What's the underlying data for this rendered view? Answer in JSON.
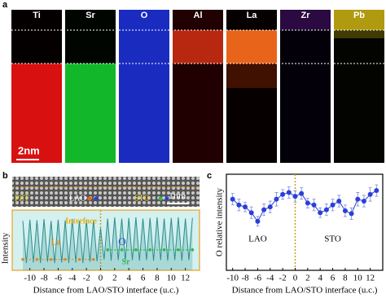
{
  "panel_labels": [
    "a",
    "b",
    "c"
  ],
  "element_maps": [
    "Ti",
    "Sr",
    "O",
    "Al",
    "La",
    "Zr",
    "Pb"
  ],
  "map_scale": "2nm",
  "stem_labels": {
    "pzt": "PZT",
    "lao": "LAO",
    "sto": "STO",
    "scale": "1nm"
  },
  "chart_data": [
    {
      "type": "line",
      "y_label": "Intensity",
      "x_label": "Distance from LAO/STO interface (u.c.)",
      "annotations": {
        "interface": "Interface",
        "la": "La",
        "sr": "Sr",
        "o": "O"
      },
      "xlim": [
        -12.5,
        14
      ],
      "xticks": [
        -10,
        -8,
        -6,
        -4,
        -2,
        0,
        2,
        4,
        6,
        8,
        10,
        12
      ],
      "ylim": [
        0,
        1
      ],
      "interface_x": 0,
      "series": [
        {
          "color": "#2a8f8f",
          "x": [
            -11,
            -10.5,
            -10,
            -9.5,
            -9,
            -8.5,
            -8,
            -7.5,
            -7,
            -6.5,
            -6,
            -5.5,
            -5,
            -4.5,
            -4,
            -3.5,
            -3,
            -2.5,
            -2,
            -1.5,
            -1,
            -0.5,
            0,
            0.5,
            1,
            1.5,
            2,
            2.5,
            3,
            3.5,
            4,
            4.5,
            5,
            5.5,
            6,
            6.5,
            7,
            7.5,
            8,
            8.5,
            9,
            9.5,
            10,
            10.5,
            11,
            11.5,
            12,
            12.5,
            13
          ],
          "values": [
            0.82,
            0.12,
            0.84,
            0.13,
            0.83,
            0.12,
            0.85,
            0.14,
            0.82,
            0.12,
            0.84,
            0.13,
            0.83,
            0.12,
            0.85,
            0.13,
            0.82,
            0.12,
            0.84,
            0.14,
            0.83,
            0.15,
            0.7,
            0.18,
            0.86,
            0.16,
            0.88,
            0.17,
            0.86,
            0.16,
            0.87,
            0.17,
            0.88,
            0.16,
            0.86,
            0.17,
            0.87,
            0.16,
            0.88,
            0.17,
            0.86,
            0.16,
            0.87,
            0.17,
            0.88,
            0.16,
            0.86,
            0.17,
            0.87
          ]
        },
        {
          "color": "#e08a1e",
          "x": [
            -11,
            -9,
            -7,
            -5,
            -3,
            -1
          ],
          "values": [
            0.18,
            0.18,
            0.18,
            0.18,
            0.18,
            0.18
          ]
        },
        {
          "color": "#2db84a",
          "x": [
            1,
            3,
            5,
            7,
            9,
            11,
            13
          ],
          "values": [
            0.34,
            0.34,
            0.34,
            0.34,
            0.34,
            0.34,
            0.34
          ]
        }
      ]
    },
    {
      "type": "errorbar",
      "y_label": "O relative intensity",
      "x_label": "Distance from LAO/STO interface (u.c.)",
      "annotations": {
        "lao": "LAO",
        "sto": "STO"
      },
      "xlim": [
        -11,
        14
      ],
      "xticks": [
        -10,
        -8,
        -6,
        -4,
        -2,
        0,
        2,
        4,
        6,
        8,
        10,
        12
      ],
      "ylim": [
        0,
        1
      ],
      "interface_x": 0,
      "color": "#2b3fd8",
      "x": [
        -10,
        -9,
        -8,
        -7,
        -6,
        -5,
        -4,
        -3,
        -2,
        -1,
        0,
        1,
        2,
        3,
        4,
        5,
        6,
        7,
        8,
        9,
        10,
        11,
        12,
        13
      ],
      "values": [
        0.74,
        0.68,
        0.66,
        0.6,
        0.51,
        0.63,
        0.66,
        0.74,
        0.79,
        0.81,
        0.77,
        0.8,
        0.7,
        0.68,
        0.6,
        0.63,
        0.68,
        0.72,
        0.62,
        0.59,
        0.74,
        0.72,
        0.79,
        0.83
      ],
      "errors": [
        0.06,
        0.06,
        0.05,
        0.06,
        0.05,
        0.06,
        0.06,
        0.07,
        0.05,
        0.06,
        0.06,
        0.06,
        0.05,
        0.06,
        0.05,
        0.06,
        0.06,
        0.06,
        0.06,
        0.06,
        0.07,
        0.06,
        0.07,
        0.06
      ]
    }
  ]
}
